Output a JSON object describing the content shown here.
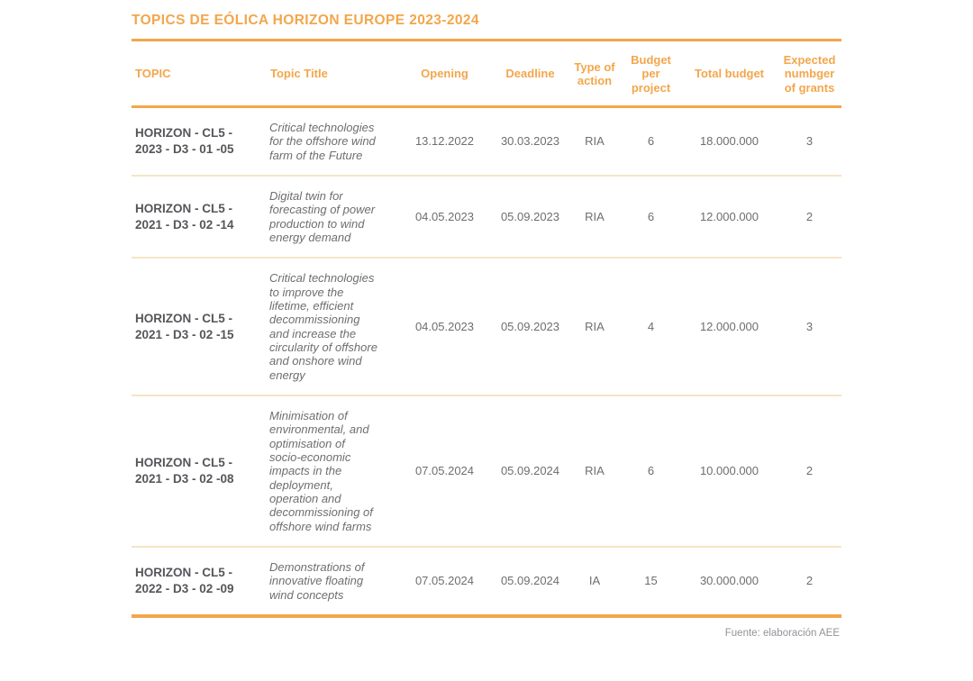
{
  "title": "TOPICS DE EÓLICA HORIZON EUROPE 2023-2024",
  "source_note": "Fuente: elaboración AEE",
  "colors": {
    "accent_orange": "#F3A64B",
    "row_divider": "#F6E4C5",
    "header_text": "#F3A64B",
    "body_text": "#6D6E71",
    "topic_text": "#55565A",
    "source_text": "#929398",
    "background": "#FFFFFF"
  },
  "chart_data": {
    "type": "table",
    "title": "TOPICS DE EÓLICA HORIZON EUROPE 2023-2024",
    "source": "Fuente: elaboración AEE",
    "columns": [
      "TOPIC",
      "Topic Title",
      "Opening",
      "Deadline",
      "Type of action",
      "Budget per project",
      "Total budget",
      "Expected numbger of grants"
    ],
    "rows": [
      [
        "HORIZON - CL5 - 2023 - D3 - 01 -05",
        "Critical technologies for the offshore wind farm of the Future",
        "13.12.2022",
        "30.03.2023",
        "RIA",
        "6",
        "18.000.000",
        "3"
      ],
      [
        "HORIZON - CL5 - 2021 - D3 - 02 -14",
        "Digital twin for forecasting of power production to wind energy demand",
        "04.05.2023",
        "05.09.2023",
        "RIA",
        "6",
        "12.000.000",
        "2"
      ],
      [
        "HORIZON - CL5 - 2021 - D3 - 02 -15",
        "Critical technologies to improve the lifetime, efficient decommissioning and increase the circularity of offshore and onshore wind energy",
        "04.05.2023",
        "05.09.2023",
        "RIA",
        "4",
        "12.000.000",
        "3"
      ],
      [
        "HORIZON - CL5 - 2021 - D3 - 02 -08",
        "Minimisation of environmental, and optimisation of socio-economic impacts in the deployment, operation and decommissioning of offshore wind farms",
        "07.05.2024",
        "05.09.2024",
        "RIA",
        "6",
        "10.000.000",
        "2"
      ],
      [
        "HORIZON - CL5 - 2022 - D3 - 02 -09",
        "Demonstrations of innovative floating wind concepts",
        "07.05.2024",
        "05.09.2024",
        "IA",
        "15",
        "30.000.000",
        "2"
      ]
    ]
  }
}
